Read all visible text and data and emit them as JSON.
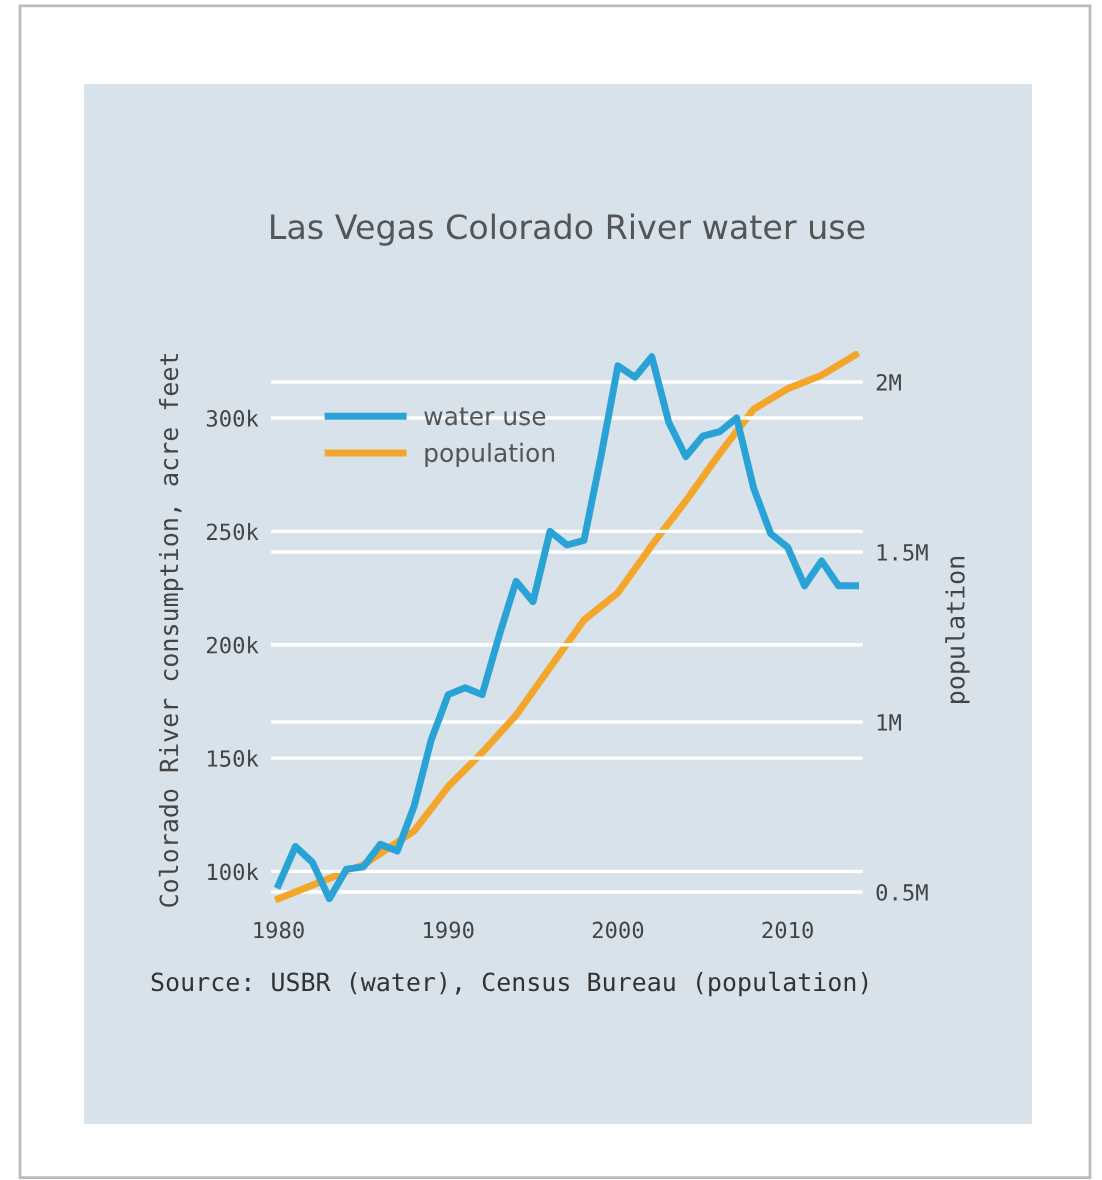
{
  "chart_data": {
    "type": "line",
    "title": "Las Vegas Colorado River water use",
    "ylabel": "Colorado River consumption, acre feet",
    "y2label": "population",
    "x": [
      1980,
      1981,
      1982,
      1983,
      1984,
      1985,
      1986,
      1987,
      1988,
      1989,
      1990,
      1991,
      1992,
      1993,
      1994,
      1995,
      1996,
      1997,
      1998,
      1999,
      2000,
      2001,
      2002,
      2003,
      2004,
      2005,
      2006,
      2007,
      2008,
      2009,
      2010,
      2011,
      2012,
      2013,
      2014
    ],
    "series": [
      {
        "name": "water use",
        "color": "#29a3d6",
        "values": [
          94000,
          111000,
          104000,
          88000,
          101000,
          102000,
          112000,
          109000,
          129000,
          158000,
          178000,
          181000,
          178000,
          204000,
          228000,
          219000,
          250000,
          244000,
          246000,
          283000,
          323000,
          318000,
          327000,
          298000,
          283000,
          292000,
          294000,
          300000,
          269000,
          249000,
          243000,
          226000,
          237000,
          226000,
          226000
        ]
      },
      {
        "name": "population",
        "color": "#f4a62a",
        "axis": "y2",
        "x": [
          1980,
          1985,
          1988,
          1990,
          1992,
          1994,
          1996,
          1998,
          2000,
          2002,
          2004,
          2006,
          2008,
          2010,
          2012,
          2014
        ],
        "values": [
          480000,
          580000,
          680000,
          810000,
          910000,
          1020000,
          1160000,
          1300000,
          1380000,
          1520000,
          1650000,
          1790000,
          1920000,
          1980000,
          2020000,
          2080000
        ]
      }
    ],
    "xlim": [
      1979.5,
      2014.5
    ],
    "xticks": [
      1980,
      1990,
      2000,
      2010
    ],
    "ylim": [
      83000,
      330000
    ],
    "yticks": [
      {
        "value": 100000,
        "label": "100k"
      },
      {
        "value": 150000,
        "label": "150k"
      },
      {
        "value": 200000,
        "label": "200k"
      },
      {
        "value": 250000,
        "label": "250k"
      },
      {
        "value": 300000,
        "label": "300k"
      }
    ],
    "y2lim": [
      447000,
      2094000
    ],
    "y2ticks": [
      {
        "value": 500000,
        "label": "0.5M"
      },
      {
        "value": 1000000,
        "label": "1M"
      },
      {
        "value": 1500000,
        "label": "1.5M"
      },
      {
        "value": 2000000,
        "label": "2M"
      }
    ],
    "grid": "y",
    "legend": "top left",
    "annotations": [
      "Source: USBR (water), Census Bureau (population)"
    ]
  }
}
